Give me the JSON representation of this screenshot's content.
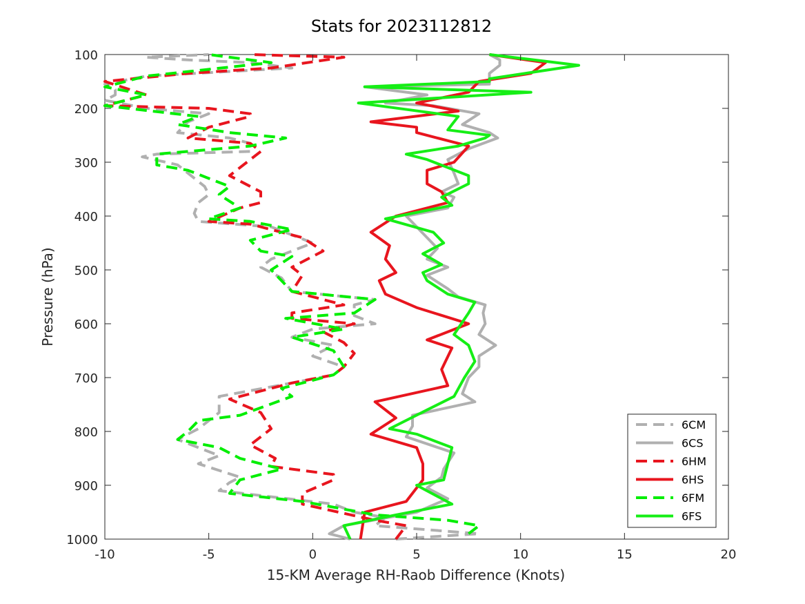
{
  "chart_data": {
    "type": "line",
    "title": "Stats for 2023112812",
    "xlabel": "15-KM Average RH-Raob Difference (Knots)",
    "ylabel": "Pressure (hPa)",
    "xlim": [
      -10,
      20
    ],
    "ylim": [
      100,
      1000
    ],
    "y_reversed": true,
    "xticks": [
      -10,
      -5,
      0,
      5,
      10,
      15,
      20
    ],
    "yticks": [
      100,
      200,
      300,
      400,
      500,
      600,
      700,
      800,
      900,
      1000
    ],
    "grid": false,
    "legend_position": "bottom-right",
    "series": [
      {
        "name": "6CM",
        "color": "#b0b0b0",
        "dash": true,
        "points": [
          [
            4,
            1000
          ],
          [
            8,
            990
          ],
          [
            3,
            975
          ],
          [
            3.5,
            960
          ],
          [
            2,
            950
          ],
          [
            1,
            935
          ],
          [
            -4.5,
            910
          ],
          [
            -4,
            895
          ],
          [
            -3.5,
            885
          ],
          [
            -5.5,
            860
          ],
          [
            -4.5,
            845
          ],
          [
            -6.5,
            815
          ],
          [
            -5.5,
            795
          ],
          [
            -4.5,
            765
          ],
          [
            -4.5,
            735
          ],
          [
            -1,
            710
          ],
          [
            1,
            695
          ],
          [
            1.5,
            680
          ],
          [
            0,
            660
          ],
          [
            1,
            640
          ],
          [
            -1,
            625
          ],
          [
            0,
            610
          ],
          [
            3,
            600
          ],
          [
            2,
            585
          ],
          [
            2,
            565
          ],
          [
            3,
            555
          ],
          [
            -1,
            540
          ],
          [
            -1.5,
            515
          ],
          [
            -2.5,
            495
          ],
          [
            -2,
            480
          ],
          [
            0,
            450
          ],
          [
            -2,
            420
          ],
          [
            -5.5,
            410
          ],
          [
            -5.7,
            395
          ],
          [
            -5.5,
            375
          ],
          [
            -5,
            360
          ],
          [
            -5.2,
            345
          ],
          [
            -6.5,
            305
          ],
          [
            -8.2,
            290
          ],
          [
            -7.5,
            285
          ],
          [
            -3,
            280
          ],
          [
            -3,
            265
          ],
          [
            -4,
            255
          ],
          [
            -6.5,
            245
          ],
          [
            -6,
            225
          ],
          [
            -5,
            210
          ],
          [
            -8,
            200
          ],
          [
            -10,
            185
          ],
          [
            -9.5,
            175
          ],
          [
            -9.5,
            165
          ],
          [
            -10,
            155
          ],
          [
            -8,
            140
          ],
          [
            -1,
            125
          ],
          [
            -3,
            115
          ],
          [
            -6,
            110
          ],
          [
            -8,
            105
          ],
          [
            -5,
            100
          ]
        ]
      },
      {
        "name": "6CS",
        "color": "#b0b0b0",
        "dash": false,
        "points": [
          [
            1.8,
            1000
          ],
          [
            0.8,
            990
          ],
          [
            1.5,
            975
          ],
          [
            5,
            950
          ],
          [
            6.5,
            925
          ],
          [
            5.5,
            905
          ],
          [
            6.2,
            885
          ],
          [
            6.3,
            870
          ],
          [
            6.8,
            840
          ],
          [
            4.5,
            810
          ],
          [
            4.8,
            790
          ],
          [
            4.8,
            770
          ],
          [
            7.8,
            745
          ],
          [
            7.2,
            730
          ],
          [
            7.5,
            700
          ],
          [
            8,
            680
          ],
          [
            8,
            660
          ],
          [
            8.8,
            640
          ],
          [
            8,
            620
          ],
          [
            8.3,
            600
          ],
          [
            8.2,
            580
          ],
          [
            8.3,
            565
          ],
          [
            7,
            550
          ],
          [
            6.5,
            535
          ],
          [
            5.5,
            510
          ],
          [
            6.5,
            495
          ],
          [
            5.5,
            480
          ],
          [
            6,
            460
          ],
          [
            5.5,
            440
          ],
          [
            4.5,
            400
          ],
          [
            6.5,
            385
          ],
          [
            6.8,
            365
          ],
          [
            6.2,
            355
          ],
          [
            7,
            340
          ],
          [
            6.8,
            320
          ],
          [
            6.5,
            295
          ],
          [
            7.5,
            275
          ],
          [
            8.9,
            255
          ],
          [
            8.5,
            245
          ],
          [
            7.2,
            230
          ],
          [
            8,
            210
          ],
          [
            5.8,
            195
          ],
          [
            3.5,
            190
          ],
          [
            5.5,
            175
          ],
          [
            2.5,
            160
          ],
          [
            8.5,
            155
          ],
          [
            8.5,
            135
          ],
          [
            9,
            120
          ],
          [
            9,
            110
          ],
          [
            8.5,
            100
          ]
        ]
      },
      {
        "name": "6HM",
        "color": "#e8151e",
        "dash": true,
        "points": [
          [
            4,
            1000
          ],
          [
            4.5,
            975
          ],
          [
            3,
            965
          ],
          [
            -0.5,
            935
          ],
          [
            -0.5,
            915
          ],
          [
            1,
            890
          ],
          [
            1,
            880
          ],
          [
            -2,
            865
          ],
          [
            -1.8,
            850
          ],
          [
            -3,
            825
          ],
          [
            -2,
            795
          ],
          [
            -2.5,
            765
          ],
          [
            -4,
            740
          ],
          [
            -1,
            710
          ],
          [
            1,
            695
          ],
          [
            1.5,
            680
          ],
          [
            2,
            655
          ],
          [
            1.5,
            635
          ],
          [
            0.5,
            615
          ],
          [
            2,
            600
          ],
          [
            -1,
            590
          ],
          [
            -1,
            580
          ],
          [
            1.5,
            565
          ],
          [
            -1,
            540
          ],
          [
            -0.5,
            510
          ],
          [
            -1,
            495
          ],
          [
            0.5,
            465
          ],
          [
            -0.5,
            440
          ],
          [
            -3,
            415
          ],
          [
            -5,
            410
          ],
          [
            -3.5,
            385
          ],
          [
            -2.5,
            375
          ],
          [
            -2.5,
            355
          ],
          [
            -4,
            325
          ],
          [
            -2.5,
            280
          ],
          [
            -3,
            265
          ],
          [
            -6,
            255
          ],
          [
            -5,
            235
          ],
          [
            -3,
            215
          ],
          [
            -3,
            210
          ],
          [
            -5,
            200
          ],
          [
            -10,
            195
          ],
          [
            -8,
            175
          ],
          [
            -10,
            150
          ],
          [
            -6,
            135
          ],
          [
            -2,
            125
          ],
          [
            1.5,
            105
          ],
          [
            -3,
            100
          ]
        ]
      },
      {
        "name": "6HS",
        "color": "#e8151e",
        "dash": false,
        "points": [
          [
            2.3,
            1000
          ],
          [
            2.5,
            950
          ],
          [
            4.5,
            930
          ],
          [
            5.3,
            890
          ],
          [
            5.3,
            860
          ],
          [
            5,
            830
          ],
          [
            2.8,
            805
          ],
          [
            4,
            775
          ],
          [
            3,
            745
          ],
          [
            6.5,
            715
          ],
          [
            6.2,
            685
          ],
          [
            6.7,
            645
          ],
          [
            5.5,
            630
          ],
          [
            7.5,
            600
          ],
          [
            5,
            570
          ],
          [
            3.5,
            545
          ],
          [
            3.2,
            520
          ],
          [
            4,
            505
          ],
          [
            3.5,
            480
          ],
          [
            3.7,
            455
          ],
          [
            2.8,
            430
          ],
          [
            4,
            400
          ],
          [
            6.5,
            375
          ],
          [
            6.2,
            355
          ],
          [
            5.5,
            340
          ],
          [
            5.5,
            315
          ],
          [
            6.8,
            300
          ],
          [
            7.5,
            270
          ],
          [
            6.5,
            260
          ],
          [
            5,
            245
          ],
          [
            5,
            235
          ],
          [
            2.8,
            225
          ],
          [
            7,
            205
          ],
          [
            5,
            190
          ],
          [
            7.5,
            170
          ],
          [
            8,
            150
          ],
          [
            10.5,
            135
          ],
          [
            11.2,
            115
          ],
          [
            8.5,
            100
          ]
        ]
      },
      {
        "name": "6FM",
        "color": "#00ee00",
        "dash": true,
        "points": [
          [
            7.5,
            990
          ],
          [
            8,
            975
          ],
          [
            6.5,
            965
          ],
          [
            3,
            955
          ],
          [
            -0.5,
            930
          ],
          [
            -4,
            915
          ],
          [
            -3.5,
            890
          ],
          [
            -1.5,
            870
          ],
          [
            -3.5,
            850
          ],
          [
            -4.5,
            830
          ],
          [
            -6.5,
            815
          ],
          [
            -6,
            800
          ],
          [
            -5.5,
            780
          ],
          [
            -3.5,
            770
          ],
          [
            -1,
            735
          ],
          [
            -1.5,
            720
          ],
          [
            1,
            695
          ],
          [
            1.5,
            680
          ],
          [
            1,
            650
          ],
          [
            -1,
            625
          ],
          [
            1.5,
            610
          ],
          [
            -1.3,
            590
          ],
          [
            2,
            580
          ],
          [
            3,
            555
          ],
          [
            -1,
            540
          ],
          [
            -2,
            500
          ],
          [
            -1,
            475
          ],
          [
            -2.5,
            465
          ],
          [
            -3,
            445
          ],
          [
            -1,
            425
          ],
          [
            -3,
            410
          ],
          [
            -5,
            405
          ],
          [
            -3.5,
            385
          ],
          [
            -4.5,
            360
          ],
          [
            -4,
            345
          ],
          [
            -6,
            315
          ],
          [
            -7.5,
            305
          ],
          [
            -7.5,
            285
          ],
          [
            -3,
            270
          ],
          [
            -1.3,
            255
          ],
          [
            -4,
            245
          ],
          [
            -6.5,
            230
          ],
          [
            -5.5,
            215
          ],
          [
            -10,
            195
          ],
          [
            -8,
            175
          ],
          [
            -10,
            160
          ],
          [
            -8,
            140
          ],
          [
            -2,
            115
          ],
          [
            -5,
            100
          ]
        ]
      },
      {
        "name": "6FS",
        "color": "#16ee16",
        "dash": false,
        "points": [
          [
            1.8,
            1000
          ],
          [
            1.5,
            975
          ],
          [
            4,
            955
          ],
          [
            6.7,
            935
          ],
          [
            5,
            900
          ],
          [
            6.3,
            890
          ],
          [
            6.5,
            860
          ],
          [
            6.7,
            830
          ],
          [
            5,
            805
          ],
          [
            3.7,
            795
          ],
          [
            5.5,
            760
          ],
          [
            6.8,
            735
          ],
          [
            7.3,
            700
          ],
          [
            7.8,
            670
          ],
          [
            7.5,
            640
          ],
          [
            6.8,
            620
          ],
          [
            7.5,
            580
          ],
          [
            7.8,
            560
          ],
          [
            6.5,
            545
          ],
          [
            5.5,
            520
          ],
          [
            5.3,
            505
          ],
          [
            6.2,
            490
          ],
          [
            5.3,
            470
          ],
          [
            6.3,
            450
          ],
          [
            5.8,
            430
          ],
          [
            3.5,
            405
          ],
          [
            6.7,
            380
          ],
          [
            6.2,
            365
          ],
          [
            7.5,
            340
          ],
          [
            7.5,
            325
          ],
          [
            5.5,
            295
          ],
          [
            4.5,
            285
          ],
          [
            7,
            270
          ],
          [
            8.3,
            255
          ],
          [
            8.5,
            250
          ],
          [
            6.5,
            240
          ],
          [
            6.7,
            230
          ],
          [
            7,
            215
          ],
          [
            2.2,
            190
          ],
          [
            10.5,
            170
          ],
          [
            2.5,
            160
          ],
          [
            8.5,
            150
          ],
          [
            8.5,
            145
          ],
          [
            12.8,
            120
          ],
          [
            8.5,
            100
          ]
        ]
      }
    ]
  }
}
